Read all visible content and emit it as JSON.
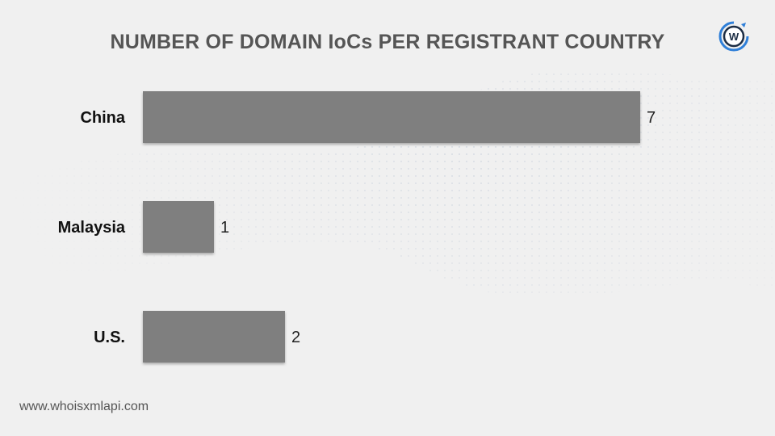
{
  "chart_data": {
    "type": "bar",
    "orientation": "horizontal",
    "title": "NUMBER OF DOMAIN IoCs PER REGISTRANT COUNTRY",
    "categories": [
      "China",
      "Malaysia",
      "U.S."
    ],
    "values": [
      7,
      1,
      2
    ],
    "data_labels": [
      "7",
      "1",
      "2"
    ],
    "xlim": [
      0,
      7
    ],
    "grid": false,
    "legend": "none",
    "bar_color": "#7f7f7f"
  },
  "colors": {
    "title": "#555555",
    "bar": "#7f7f7f",
    "background": "#f0f0f0",
    "logo_blue": "#2f7fd8"
  },
  "logo": {
    "icon": "whoisxmlapi-logo-icon",
    "letter": "W"
  },
  "footer": {
    "url": "www.whoisxmlapi.com"
  }
}
